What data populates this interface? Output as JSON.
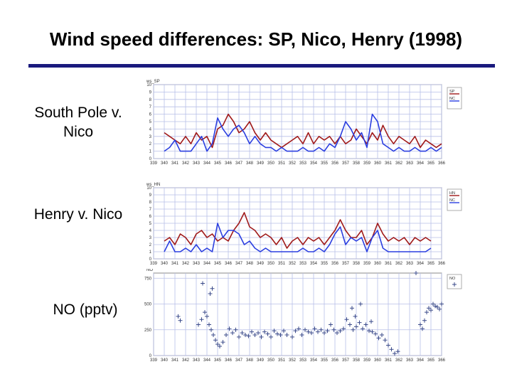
{
  "slide": {
    "title": "Wind speed differences: SP, Nico, Henry (1998)",
    "labels": [
      "South Pole v. Nico",
      "Henry v. Nico",
      "NO (pptv)"
    ]
  },
  "colors": {
    "red": "#a01a1a",
    "blue": "#2b3fe0",
    "no": "#3a4a8a",
    "grid": "#b8bfe8",
    "rule": "#1a1a7e"
  },
  "chart_data": [
    {
      "type": "line",
      "title": "ws_SP",
      "x_range": [
        339,
        366
      ],
      "xticks": [
        339,
        340,
        341,
        342,
        343,
        344,
        345,
        346,
        347,
        348,
        349,
        350,
        351,
        352,
        353,
        354,
        355,
        356,
        357,
        358,
        359,
        360,
        361,
        362,
        363,
        364,
        365,
        366
      ],
      "yticks": [
        0,
        1,
        2,
        3,
        4,
        5,
        6,
        7,
        8,
        9,
        10
      ],
      "ylim": [
        0,
        10
      ],
      "legend": [
        "SP",
        "NC"
      ],
      "legend_position": "right",
      "series": [
        {
          "name": "SP",
          "color": "#a01a1a",
          "x": [
            340,
            340.5,
            341,
            341.5,
            342,
            342.5,
            343,
            343.5,
            344,
            344.5,
            345,
            345.5,
            346,
            346.5,
            347,
            347.5,
            348,
            348.5,
            349,
            349.5,
            350,
            350.5,
            351,
            351.5,
            352,
            352.5,
            353,
            353.5,
            354,
            354.5,
            355,
            355.5,
            356,
            356.5,
            357,
            357.5,
            358,
            358.5,
            359,
            359.5,
            360,
            360.5,
            361,
            361.5,
            362,
            362.5,
            363,
            363.5,
            364,
            364.5,
            365,
            365.5,
            366
          ],
          "y": [
            3.5,
            3,
            2.5,
            2,
            3,
            2,
            3.5,
            2.5,
            3,
            1.5,
            4,
            4.5,
            6,
            5,
            3.5,
            4,
            5,
            3.5,
            2.5,
            3.5,
            2.5,
            2,
            1.5,
            2,
            2.5,
            3,
            2,
            3.5,
            2,
            3,
            2.5,
            3,
            2,
            3,
            2,
            2.5,
            4,
            3,
            2,
            3.5,
            2.5,
            4.5,
            3,
            2,
            3,
            2.5,
            2,
            3,
            1.5,
            2.5,
            2,
            1.5,
            2
          ]
        },
        {
          "name": "NC",
          "color": "#2b3fe0",
          "x": [
            340,
            340.5,
            341,
            341.5,
            342,
            342.5,
            343,
            343.5,
            344,
            344.5,
            345,
            345.5,
            346,
            346.5,
            347,
            347.5,
            348,
            348.5,
            349,
            349.5,
            350,
            350.5,
            351,
            351.5,
            352,
            352.5,
            353,
            353.5,
            354,
            354.5,
            355,
            355.5,
            356,
            356.5,
            357,
            357.5,
            358,
            358.5,
            359,
            359.5,
            360,
            360.5,
            361,
            361.5,
            362,
            362.5,
            363,
            363.5,
            364,
            364.5,
            365,
            365.5,
            366
          ],
          "y": [
            1,
            1.5,
            2.5,
            1,
            1,
            1,
            2,
            3,
            1,
            2,
            5.5,
            4,
            3,
            4,
            4.5,
            3.5,
            2,
            3,
            2,
            1.5,
            1.5,
            1,
            1.5,
            1,
            1,
            1,
            1.5,
            1,
            1,
            1.5,
            1,
            2,
            1.5,
            3,
            5,
            4,
            2.5,
            3.5,
            1.5,
            6,
            5,
            2,
            1.5,
            1,
            1.5,
            1,
            1,
            1.5,
            1,
            1,
            1.5,
            1,
            1.5
          ]
        }
      ]
    },
    {
      "type": "line",
      "title": "ws_HN",
      "x_range": [
        339,
        366
      ],
      "xticks": [
        339,
        340,
        341,
        342,
        343,
        344,
        345,
        346,
        347,
        348,
        349,
        350,
        351,
        352,
        353,
        354,
        355,
        356,
        357,
        358,
        359,
        360,
        361,
        362,
        363,
        364,
        365,
        366
      ],
      "yticks": [
        0,
        1,
        2,
        3,
        4,
        5,
        6,
        7,
        8,
        9,
        10
      ],
      "ylim": [
        0,
        10
      ],
      "legend": [
        "HN",
        "NC"
      ],
      "legend_position": "right",
      "series": [
        {
          "name": "HN",
          "color": "#a01a1a",
          "x": [
            340,
            340.5,
            341,
            341.5,
            342,
            342.5,
            343,
            343.5,
            344,
            344.5,
            345,
            345.5,
            346,
            346.5,
            347,
            347.5,
            348,
            348.5,
            349,
            349.5,
            350,
            350.5,
            351,
            351.5,
            352,
            352.5,
            353,
            353.5,
            354,
            354.5,
            355,
            355.5,
            356,
            356.5,
            357,
            357.5,
            358,
            358.5,
            359,
            359.5,
            360,
            360.5,
            361,
            361.5,
            362,
            362.5,
            363,
            363.5,
            364,
            364.5,
            365
          ],
          "y": [
            2.5,
            3,
            2,
            3.5,
            3,
            2,
            3.5,
            4,
            3,
            3.5,
            2.5,
            3,
            2.5,
            4,
            5,
            6.5,
            4.5,
            4,
            3,
            3.5,
            3,
            2,
            3,
            1.5,
            2.5,
            3,
            2,
            3,
            2.5,
            3,
            2,
            3,
            4,
            5.5,
            4,
            3,
            3,
            4,
            2,
            3,
            5,
            3.5,
            2.5,
            3,
            2.5,
            3,
            2,
            3,
            2.5,
            3,
            2.5
          ]
        },
        {
          "name": "NC",
          "color": "#2b3fe0",
          "x": [
            340,
            340.5,
            341,
            341.5,
            342,
            342.5,
            343,
            343.5,
            344,
            344.5,
            345,
            345.5,
            346,
            346.5,
            347,
            347.5,
            348,
            348.5,
            349,
            349.5,
            350,
            350.5,
            351,
            351.5,
            352,
            352.5,
            353,
            353.5,
            354,
            354.5,
            355,
            355.5,
            356,
            356.5,
            357,
            357.5,
            358,
            358.5,
            359,
            359.5,
            360,
            360.5,
            361,
            361.5,
            362,
            362.5,
            363,
            363.5,
            364,
            364.5,
            365
          ],
          "y": [
            1,
            2.5,
            1,
            1,
            1.5,
            1,
            2,
            1,
            1.5,
            1,
            5,
            3,
            4,
            4,
            3.5,
            2,
            2.5,
            1.5,
            1,
            1.5,
            1,
            1,
            1,
            1,
            1,
            1,
            1.5,
            1,
            1,
            1.5,
            1,
            2,
            3.5,
            4.5,
            2,
            3,
            2.5,
            3,
            1,
            3,
            4,
            1.5,
            1,
            1,
            1,
            1,
            1,
            1,
            1,
            1,
            1.5
          ]
        }
      ]
    },
    {
      "type": "scatter",
      "title": "NO",
      "x_range": [
        339,
        366
      ],
      "xticks": [
        339,
        340,
        341,
        342,
        343,
        344,
        345,
        346,
        347,
        348,
        349,
        350,
        351,
        352,
        353,
        354,
        355,
        356,
        357,
        358,
        359,
        360,
        361,
        362,
        363,
        364,
        365,
        366
      ],
      "yticks": [
        0,
        250,
        500,
        750
      ],
      "ylim": [
        0,
        800
      ],
      "legend": [
        "NO"
      ],
      "legend_position": "right",
      "series": [
        {
          "name": "NO",
          "color": "#3a4a8a",
          "x": [
            341.3,
            341.5,
            343.2,
            343.5,
            343.8,
            344,
            344.2,
            344.4,
            344.6,
            344.8,
            345,
            345.2,
            345.5,
            345.8,
            346.1,
            346.4,
            346.7,
            347,
            347.3,
            347.6,
            347.9,
            348.2,
            348.5,
            348.8,
            349.1,
            349.4,
            349.7,
            350,
            350.3,
            350.6,
            350.9,
            351.2,
            351.5,
            352,
            352.3,
            352.6,
            352.9,
            353.2,
            353.5,
            353.8,
            354.1,
            354.4,
            354.7,
            355,
            355.3,
            355.6,
            355.9,
            356.2,
            356.5,
            356.8,
            357.1,
            357.4,
            357.7,
            358,
            358.3,
            358.6,
            358.9,
            359.2,
            359.5,
            359.8,
            360.1,
            360.4,
            360.7,
            361,
            361.3,
            361.6,
            361.9,
            364,
            364.2,
            364.4,
            364.6,
            364.8,
            365,
            365.2,
            365.4,
            365.6,
            365.8,
            366,
            343.6,
            344.3,
            344.5,
            357.6,
            357.9,
            358.4,
            359.4,
            363.6
          ],
          "y": [
            380,
            340,
            300,
            350,
            420,
            380,
            300,
            250,
            200,
            150,
            110,
            90,
            130,
            200,
            260,
            220,
            250,
            180,
            220,
            200,
            190,
            230,
            200,
            220,
            180,
            230,
            210,
            180,
            240,
            210,
            200,
            240,
            200,
            180,
            240,
            260,
            200,
            250,
            230,
            220,
            260,
            230,
            250,
            220,
            240,
            300,
            250,
            220,
            240,
            260,
            350,
            300,
            250,
            280,
            320,
            260,
            300,
            240,
            230,
            210,
            170,
            200,
            150,
            100,
            60,
            20,
            40,
            300,
            260,
            340,
            420,
            460,
            440,
            500,
            480,
            470,
            450,
            500,
            700,
            600,
            650,
            460,
            380,
            500,
            330,
            820
          ]
        }
      ]
    }
  ]
}
